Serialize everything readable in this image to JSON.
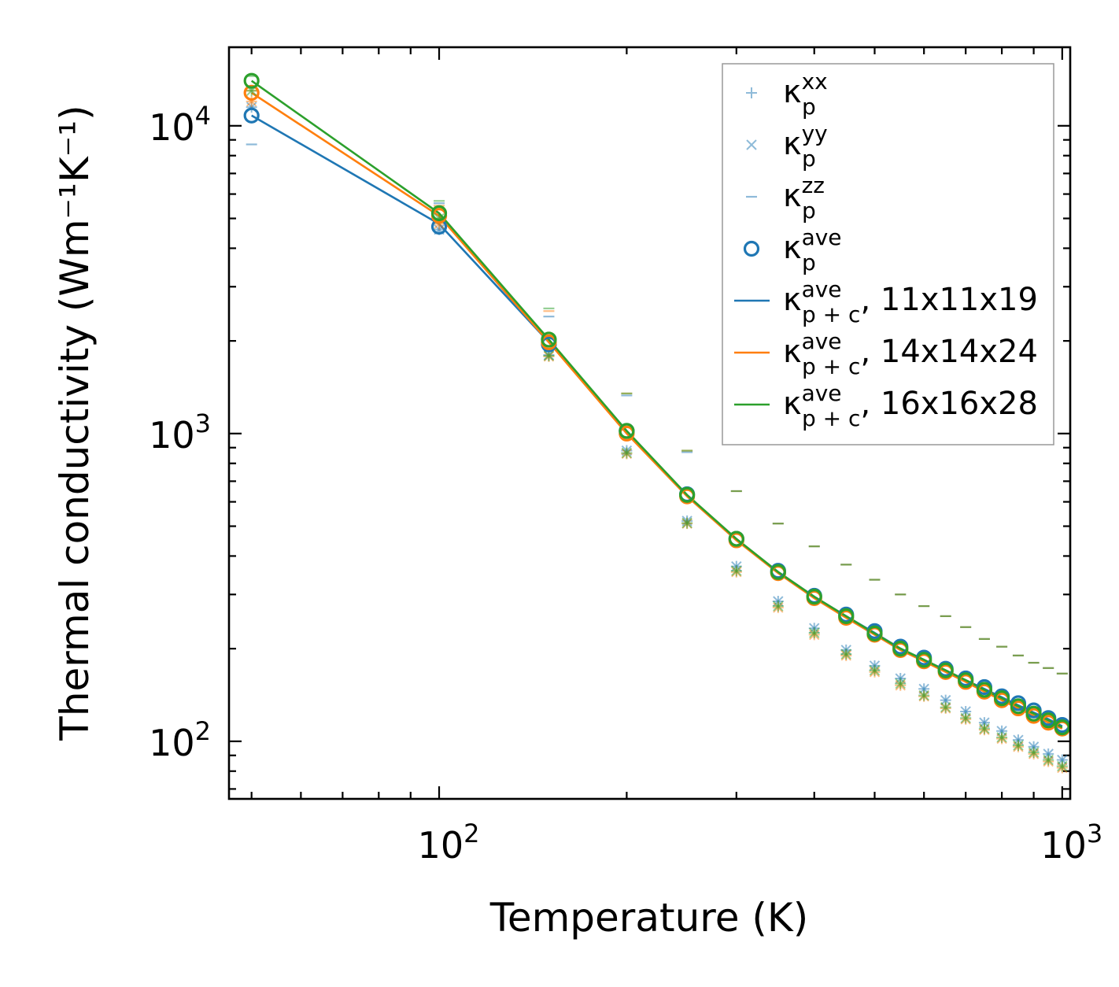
{
  "chart_data": {
    "type": "scatter",
    "title": "",
    "xlabel": "Temperature (K)",
    "ylabel": "Thermal conductivity (Wm⁻¹K⁻¹)",
    "xscale": "log",
    "yscale": "log",
    "xlim": [
      46,
      1030
    ],
    "ylim": [
      65,
      18000
    ],
    "x_ticks": [
      {
        "value": 100,
        "base": "10",
        "exp": "2"
      },
      {
        "value": 1000,
        "base": "10",
        "exp": "3"
      }
    ],
    "y_ticks": [
      {
        "value": 100,
        "base": "10",
        "exp": "2"
      },
      {
        "value": 1000,
        "base": "10",
        "exp": "3"
      },
      {
        "value": 10000,
        "base": "10",
        "exp": "4"
      }
    ],
    "legend_position": "top-right",
    "colors": {
      "mesh_11": "#1f77b4",
      "mesh_14": "#ff7f0e",
      "mesh_16": "#2ca02c"
    },
    "legend": [
      {
        "kind": "plus",
        "base": "κ",
        "sub": "p",
        "sup": "xx",
        "suffix": ""
      },
      {
        "kind": "cross",
        "base": "κ",
        "sub": "p",
        "sup": "yy",
        "suffix": ""
      },
      {
        "kind": "dash",
        "base": "κ",
        "sub": "p",
        "sup": "zz",
        "suffix": ""
      },
      {
        "kind": "circle",
        "base": "κ",
        "sub": "p",
        "sup": "ave",
        "suffix": ""
      },
      {
        "kind": "line",
        "color": "#1f77b4",
        "base": "κ",
        "sub": "p + c",
        "sup": "ave",
        "suffix": ", 11x11x19"
      },
      {
        "kind": "line",
        "color": "#ff7f0e",
        "base": "κ",
        "sub": "p + c",
        "sup": "ave",
        "suffix": ", 14x14x24"
      },
      {
        "kind": "line",
        "color": "#2ca02c",
        "base": "κ",
        "sub": "p + c",
        "sup": "ave",
        "suffix": ", 16x16x28"
      }
    ],
    "x": [
      50,
      100,
      150,
      200,
      250,
      300,
      350,
      400,
      450,
      500,
      550,
      600,
      650,
      700,
      750,
      800,
      850,
      900,
      950,
      1000
    ],
    "series": [
      {
        "name": "11x11x19",
        "color": "#1f77b4",
        "kxx": [
          11500,
          4600,
          1800,
          880,
          520,
          370,
          285,
          233,
          198,
          176,
          160,
          148,
          136,
          125,
          115,
          108,
          101,
          96,
          91,
          87
        ],
        "kyy": [
          11500,
          4600,
          1800,
          880,
          520,
          370,
          285,
          233,
          198,
          176,
          160,
          148,
          136,
          125,
          115,
          108,
          101,
          96,
          91,
          87
        ],
        "kzz": [
          8700,
          5600,
          2400,
          1330,
          870,
          650,
          510,
          430,
          375,
          335,
          300,
          275,
          255,
          235,
          215,
          203,
          190,
          180,
          173,
          166
        ],
        "kave": [
          10800,
          4700,
          1950,
          1020,
          635,
          455,
          358,
          297,
          258,
          228,
          203,
          187,
          172,
          160,
          150,
          140,
          133,
          126,
          119,
          113
        ],
        "kpc": [
          10800,
          4800,
          1980,
          1020,
          630,
          450,
          355,
          295,
          255,
          225,
          200,
          184,
          170,
          158,
          148,
          139,
          131,
          124,
          118,
          112
        ]
      },
      {
        "name": "14x14x24",
        "color": "#ff7f0e",
        "kxx": [
          12000,
          4800,
          1780,
          860,
          510,
          355,
          272,
          222,
          190,
          168,
          152,
          140,
          128,
          118,
          109,
          102,
          96,
          91,
          86,
          82
        ],
        "kyy": [
          12000,
          4800,
          1780,
          860,
          510,
          355,
          272,
          222,
          190,
          168,
          152,
          140,
          128,
          118,
          109,
          102,
          96,
          91,
          86,
          82
        ],
        "kzz": [
          13000,
          5500,
          2500,
          1350,
          880,
          650,
          510,
          430,
          375,
          335,
          300,
          275,
          255,
          235,
          215,
          203,
          190,
          180,
          173,
          166
        ],
        "kave": [
          12800,
          5100,
          1980,
          1000,
          625,
          450,
          352,
          292,
          252,
          222,
          198,
          182,
          168,
          156,
          145,
          136,
          128,
          121,
          115,
          110
        ],
        "kpc": [
          12800,
          5100,
          1980,
          1000,
          625,
          450,
          352,
          292,
          252,
          222,
          198,
          182,
          168,
          156,
          145,
          136,
          128,
          121,
          115,
          110
        ]
      },
      {
        "name": "16x16x28",
        "color": "#2ca02c",
        "kxx": [
          13000,
          5000,
          1790,
          865,
          512,
          358,
          275,
          225,
          192,
          170,
          154,
          141,
          129,
          119,
          110,
          103,
          97,
          92,
          87,
          83
        ],
        "kyy": [
          13000,
          5000,
          1790,
          865,
          512,
          358,
          275,
          225,
          192,
          170,
          154,
          141,
          129,
          119,
          110,
          103,
          97,
          92,
          87,
          83
        ],
        "kzz": [
          14500,
          5700,
          2550,
          1350,
          880,
          650,
          510,
          430,
          375,
          335,
          300,
          275,
          255,
          235,
          215,
          203,
          190,
          180,
          173,
          166
        ],
        "kave": [
          14000,
          5200,
          2020,
          1020,
          632,
          455,
          355,
          295,
          255,
          224,
          200,
          184,
          170,
          158,
          147,
          138,
          130,
          123,
          117,
          111
        ],
        "kpc": [
          14000,
          5200,
          2020,
          1020,
          632,
          455,
          355,
          295,
          255,
          224,
          200,
          184,
          170,
          158,
          147,
          138,
          130,
          123,
          117,
          111
        ]
      }
    ]
  }
}
